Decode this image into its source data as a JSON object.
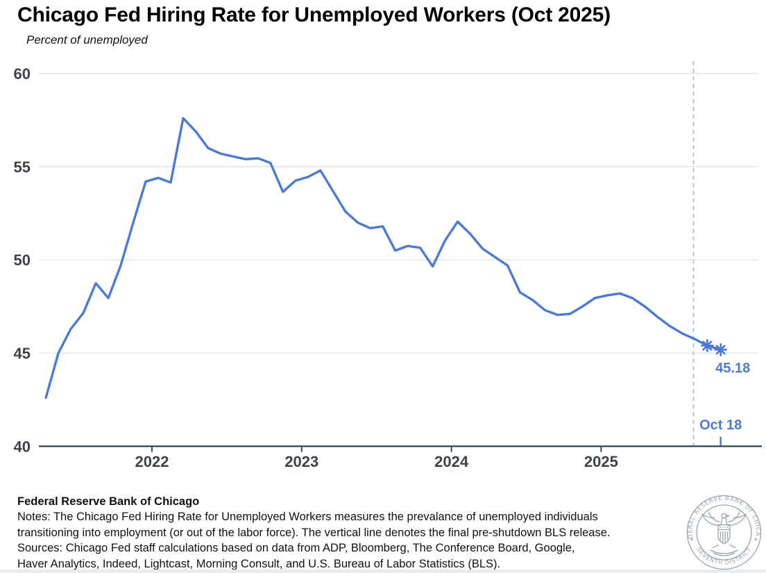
{
  "header": {
    "title": "Chicago Fed Hiring Rate for Unemployed Workers (Oct 2025)",
    "subtitle": "Percent of unemployed"
  },
  "chart_data": {
    "type": "line",
    "title": "Chicago Fed Hiring Rate for Unemployed Workers (Oct 2025)",
    "ylabel": "Percent of unemployed",
    "ylim": [
      40,
      60
    ],
    "y_ticks": [
      40,
      45,
      50,
      55,
      60
    ],
    "x_ticks": [
      2022,
      2023,
      2024,
      2025
    ],
    "grid": "horizontal",
    "x_start": "2021-04",
    "x_end": "2025-10-18",
    "series": [
      {
        "name": "Hiring rate for unemployed workers",
        "points": [
          [
            "2021-04",
            42.6
          ],
          [
            "2021-05",
            45.0
          ],
          [
            "2021-06",
            46.3
          ],
          [
            "2021-07",
            47.15
          ],
          [
            "2021-08",
            48.75
          ],
          [
            "2021-09",
            47.95
          ],
          [
            "2021-10",
            49.7
          ],
          [
            "2021-11",
            52.0
          ],
          [
            "2021-12",
            54.2
          ],
          [
            "2022-01",
            54.4
          ],
          [
            "2022-02",
            54.15
          ],
          [
            "2022-03",
            57.6
          ],
          [
            "2022-04",
            56.9
          ],
          [
            "2022-05",
            56.0
          ],
          [
            "2022-06",
            55.7
          ],
          [
            "2022-07",
            55.55
          ],
          [
            "2022-08",
            55.4
          ],
          [
            "2022-09",
            55.45
          ],
          [
            "2022-10",
            55.2
          ],
          [
            "2022-11",
            53.65
          ],
          [
            "2022-12",
            54.25
          ],
          [
            "2023-01",
            54.45
          ],
          [
            "2023-02",
            54.8
          ],
          [
            "2023-03",
            53.7
          ],
          [
            "2023-04",
            52.6
          ],
          [
            "2023-05",
            52.0
          ],
          [
            "2023-06",
            51.7
          ],
          [
            "2023-07",
            51.8
          ],
          [
            "2023-08",
            50.5
          ],
          [
            "2023-09",
            50.75
          ],
          [
            "2023-10",
            50.65
          ],
          [
            "2023-11",
            49.65
          ],
          [
            "2023-12",
            51.05
          ],
          [
            "2024-01",
            52.05
          ],
          [
            "2024-02",
            51.4
          ],
          [
            "2024-03",
            50.6
          ],
          [
            "2024-04",
            50.15
          ],
          [
            "2024-05",
            49.7
          ],
          [
            "2024-06",
            48.25
          ],
          [
            "2024-07",
            47.85
          ],
          [
            "2024-08",
            47.3
          ],
          [
            "2024-09",
            47.05
          ],
          [
            "2024-10",
            47.1
          ],
          [
            "2024-11",
            47.5
          ],
          [
            "2024-12",
            47.95
          ],
          [
            "2025-01",
            48.1
          ],
          [
            "2025-02",
            48.2
          ],
          [
            "2025-03",
            47.95
          ],
          [
            "2025-04",
            47.5
          ],
          [
            "2025-05",
            46.95
          ],
          [
            "2025-06",
            46.45
          ],
          [
            "2025-07",
            46.05
          ],
          [
            "2025-08",
            45.75
          ]
        ]
      }
    ],
    "final_estimates": [
      [
        "2025-09",
        45.4
      ],
      [
        "2025-10-18",
        45.18
      ]
    ],
    "annotations": {
      "last_value_label": "45.18",
      "last_date_label": "Oct 18",
      "vline_t": 2025.617
    },
    "colors": {
      "line": "#4b79d8",
      "annotation": "#4b79d8",
      "grid": "#d9d9d9",
      "axis": "#1e3a56",
      "tick_label": "#3d4349",
      "dashed_line": "#bdbdbd"
    }
  },
  "footer": {
    "org": "Federal Reserve Bank of Chicago",
    "notes_lines": [
      "Notes: The Chicago Fed Hiring Rate for Unemployed Workers measures the prevalance of unemployed individuals",
      "transitioning into employment (or out of the labor force). The vertical line denotes the final pre-shutdown BLS release."
    ],
    "sources_lines": [
      "Sources: Chicago Fed staff calculations based on data from ADP, Bloomberg, The Conference Board, Google,",
      "Haver Analytics, Indeed, Lightcast, Morning Consult, and U.S. Bureau of Labor Statistics (BLS)."
    ]
  },
  "logo": {
    "ring_top": "FEDERAL RESERVE BANK OF CHICAGO",
    "ring_bottom": "SEVENTH DISTRICT"
  }
}
